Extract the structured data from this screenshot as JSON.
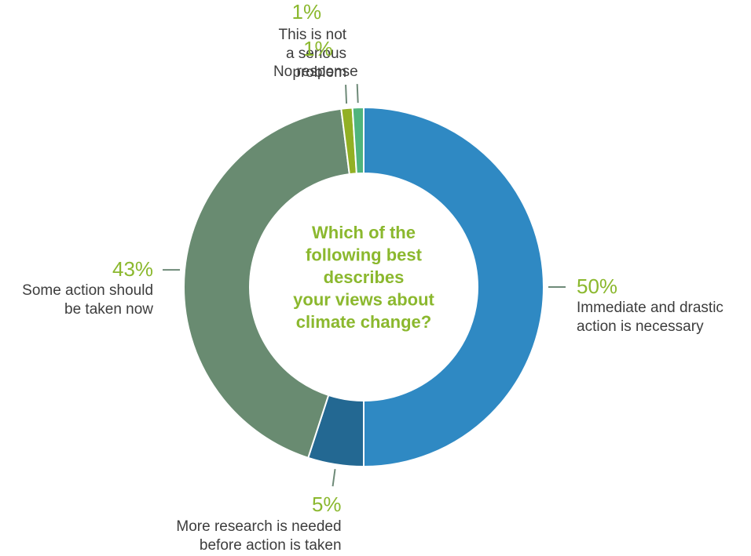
{
  "chart_data": {
    "type": "pie",
    "variant": "donut",
    "center_title": [
      "Which of the",
      "following best",
      "describes",
      "your views about",
      "climate change?"
    ],
    "slices": [
      {
        "id": "immediate",
        "value": 50,
        "pct_label": "50%",
        "label_lines": [
          "Immediate and drastic",
          "action is necessary"
        ],
        "color": "#2f89c3"
      },
      {
        "id": "research",
        "value": 5,
        "pct_label": "5%",
        "label_lines": [
          "More research is needed",
          "before action is taken"
        ],
        "color": "#236892"
      },
      {
        "id": "some-action",
        "value": 43,
        "pct_label": "43%",
        "label_lines": [
          "Some action should",
          "be taken now"
        ],
        "color": "#698b71"
      },
      {
        "id": "not-serious",
        "value": 1,
        "pct_label": "1%",
        "label_lines": [
          "This is not",
          "a serious",
          "problem"
        ],
        "color": "#92b024"
      },
      {
        "id": "no-response",
        "value": 1,
        "pct_label": "1%",
        "label_lines": [
          "No response"
        ],
        "color": "#50b47c"
      }
    ]
  },
  "colors": {
    "label_green": "#8bb82e",
    "leader": "#6e8a78",
    "text": "#3d3d3d"
  }
}
